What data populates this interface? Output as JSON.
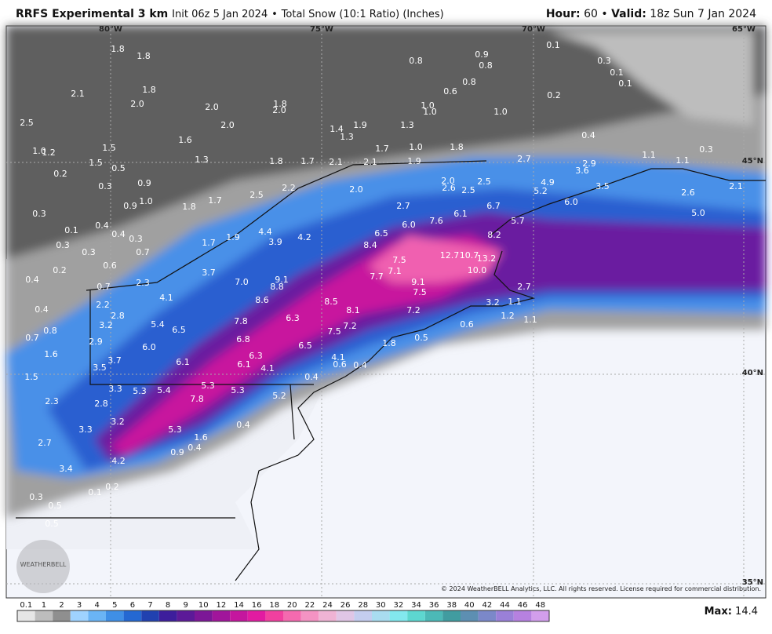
{
  "header": {
    "title": "RRFS Experimental 3 km",
    "init": "Init 06z 5 Jan 2024",
    "separator": "•",
    "product": "Total Snow (10:1 Ratio) (Inches)",
    "hour_label": "Hour:",
    "hour": "60",
    "valid_label": "Valid:",
    "valid": "18z Sun 7 Jan 2024"
  },
  "graticule": [
    "80°W",
    "75°W",
    "70°W",
    "65°W",
    "45°N",
    "40°N",
    "35°N"
  ],
  "copyright": "© 2024 WeatherBELL Analytics, LLC. All rights reserved. License required for commercial distribution.",
  "logo": "WEATHERBELL",
  "map_labels": [
    "1.8",
    "1.8",
    "0.8",
    "0.9",
    "0.8",
    "0.1",
    "0.3",
    "0.1",
    "0.1",
    "2.1",
    "1.8",
    "2.0",
    "2.0",
    "1.8",
    "2.0",
    "0.6",
    "0.8",
    "0.2",
    "1.0",
    "1.0",
    "1.0",
    "2.5",
    "2.0",
    "1.4",
    "1.9",
    "1.3",
    "1.3",
    "1.6",
    "1.0",
    "1.2",
    "1.5",
    "1.7",
    "1.0",
    "1.8",
    "0.4",
    "0.3",
    "1.5",
    "0.5",
    "1.3",
    "1.8",
    "1.7",
    "2.1",
    "2.1",
    "1.9",
    "2.7",
    "1.1",
    "1.1",
    "0.2",
    "0.9",
    "0.3",
    "3.6",
    "2.9",
    "2.0",
    "2.6",
    "2.5",
    "2.5",
    "2.0",
    "4.9",
    "5.2",
    "3.5",
    "2.6",
    "2.1",
    "0.9",
    "1.0",
    "1.8",
    "1.7",
    "2.5",
    "2.2",
    "2.7",
    "6.7",
    "6.1",
    "6.0",
    "0.3",
    "7.6",
    "6.0",
    "5.0",
    "0.4",
    "0.1",
    "0.4",
    "0.3",
    "5.7",
    "6.5",
    "8.2",
    "1.9",
    "4.4",
    "1.7",
    "3.9",
    "4.2",
    "8.4",
    "0.3",
    "0.3",
    "0.7",
    "12.7",
    "10.7",
    "13.2",
    "0.6",
    "0.2",
    "7.5",
    "10.0",
    "7.1",
    "3.7",
    "0.4",
    "9.1",
    "7.0",
    "7.7",
    "8.8",
    "9.1",
    "7.5",
    "0.7",
    "2.3",
    "2.7",
    "4.1",
    "8.6",
    "8.5",
    "3.2",
    "1.1",
    "2.2",
    "0.4",
    "8.1",
    "7.2",
    "1.2",
    "1.1",
    "2.8",
    "6.3",
    "7.8",
    "0.6",
    "3.2",
    "5.4",
    "6.5",
    "7.2",
    "7.5",
    "0.8",
    "0.7",
    "2.9",
    "6.8",
    "6.5",
    "1.8",
    "0.5",
    "6.0",
    "1.6",
    "3.7",
    "6.3",
    "4.1",
    "6.1",
    "6.1",
    "4.1",
    "0.6",
    "0.4",
    "3.5",
    "1.5",
    "0.4",
    "3.3",
    "5.3",
    "5.4",
    "5.3",
    "5.3",
    "5.2",
    "2.3",
    "2.8",
    "7.8",
    "0.4",
    "3.2",
    "3.3",
    "5.3",
    "1.6",
    "2.7",
    "0.4",
    "0.9",
    "4.2",
    "3.4",
    "0.2",
    "0.1",
    "0.3",
    "0.5",
    "0.5"
  ],
  "colorbar": {
    "ticks": [
      0.1,
      1,
      2,
      3,
      4,
      5,
      6,
      7,
      8,
      9,
      10,
      12,
      14,
      16,
      18,
      20,
      22,
      24,
      26,
      28,
      30,
      32,
      34,
      36,
      38,
      40,
      42,
      44,
      46,
      48
    ],
    "colors": [
      "#e6e6e6",
      "#bdbdbd",
      "#8f8f8f",
      "#9fd3ff",
      "#6ab4f5",
      "#3f8fe6",
      "#2468d2",
      "#2141b0",
      "#3d1e9c",
      "#5c1a98",
      "#7c1797",
      "#a1159b",
      "#c5169e",
      "#e21ba1",
      "#f1409f",
      "#f46aaf",
      "#f493c3",
      "#efb3d4",
      "#e0c6e6",
      "#c4cdef",
      "#a9dcf0",
      "#82e8ee",
      "#5dd7d0",
      "#4cb9b7",
      "#419ca0",
      "#5d8fb2",
      "#7b88c9",
      "#9a80d8",
      "#b681e0",
      "#d29eec"
    ],
    "max_label": "Max:",
    "max": "14.4"
  }
}
